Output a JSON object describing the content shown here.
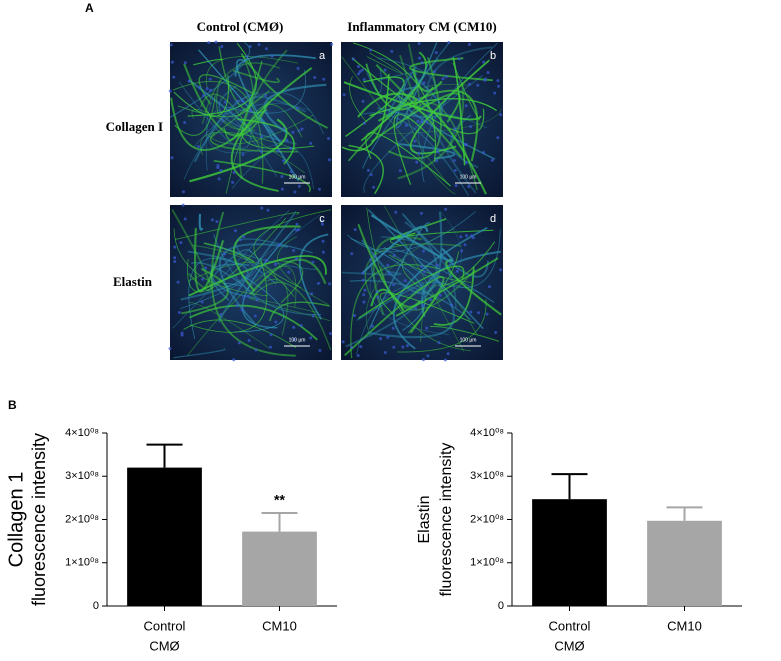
{
  "figure": {
    "panel_a": "A",
    "panel_b": "B",
    "columns": [
      "Control (CMØ)",
      "Inflammatory CM (CM10)"
    ],
    "rows": [
      "Collagen I",
      "Elastin"
    ],
    "images": [
      {
        "letter": "a",
        "scale": "100 µm"
      },
      {
        "letter": "b",
        "scale": "100 µm"
      },
      {
        "letter": "c",
        "scale": "100 µm"
      },
      {
        "letter": "d",
        "scale": "100 µm"
      }
    ]
  },
  "chart_data": [
    {
      "type": "bar",
      "ylabel": [
        "Collagen 1",
        "fluorescence intensity"
      ],
      "categories": [
        [
          "Control",
          "CMØ"
        ],
        [
          "CM10"
        ]
      ],
      "values": [
        320000000,
        172000000
      ],
      "errors": [
        53000000,
        43000000
      ],
      "colors": [
        "#000000",
        "#a6a6a6"
      ],
      "significance": [
        null,
        "**"
      ],
      "ylim": [
        0,
        400000000
      ],
      "yticks": [
        0,
        {
          "value": 100000000,
          "label": "1×10⁰⁸"
        },
        {
          "value": 200000000,
          "label": "2×10⁰⁸"
        },
        {
          "value": 300000000,
          "label": "3×10⁰⁸"
        },
        {
          "value": 400000000,
          "label": "4×10⁰⁸"
        }
      ]
    },
    {
      "type": "bar",
      "ylabel": [
        "Elastin",
        "fluorescence intensity"
      ],
      "categories": [
        [
          "Control",
          "CMØ"
        ],
        [
          "CM10"
        ]
      ],
      "values": [
        247000000,
        197000000
      ],
      "errors": [
        58000000,
        31000000
      ],
      "colors": [
        "#000000",
        "#a6a6a6"
      ],
      "significance": [
        null,
        null
      ],
      "ylim": [
        0,
        400000000
      ],
      "yticks": [
        0,
        {
          "value": 100000000,
          "label": "1×10⁰⁸"
        },
        {
          "value": 200000000,
          "label": "2×10⁰⁸"
        },
        {
          "value": 300000000,
          "label": "3×10⁰⁸"
        },
        {
          "value": 400000000,
          "label": "4×10⁰⁸"
        }
      ]
    }
  ]
}
